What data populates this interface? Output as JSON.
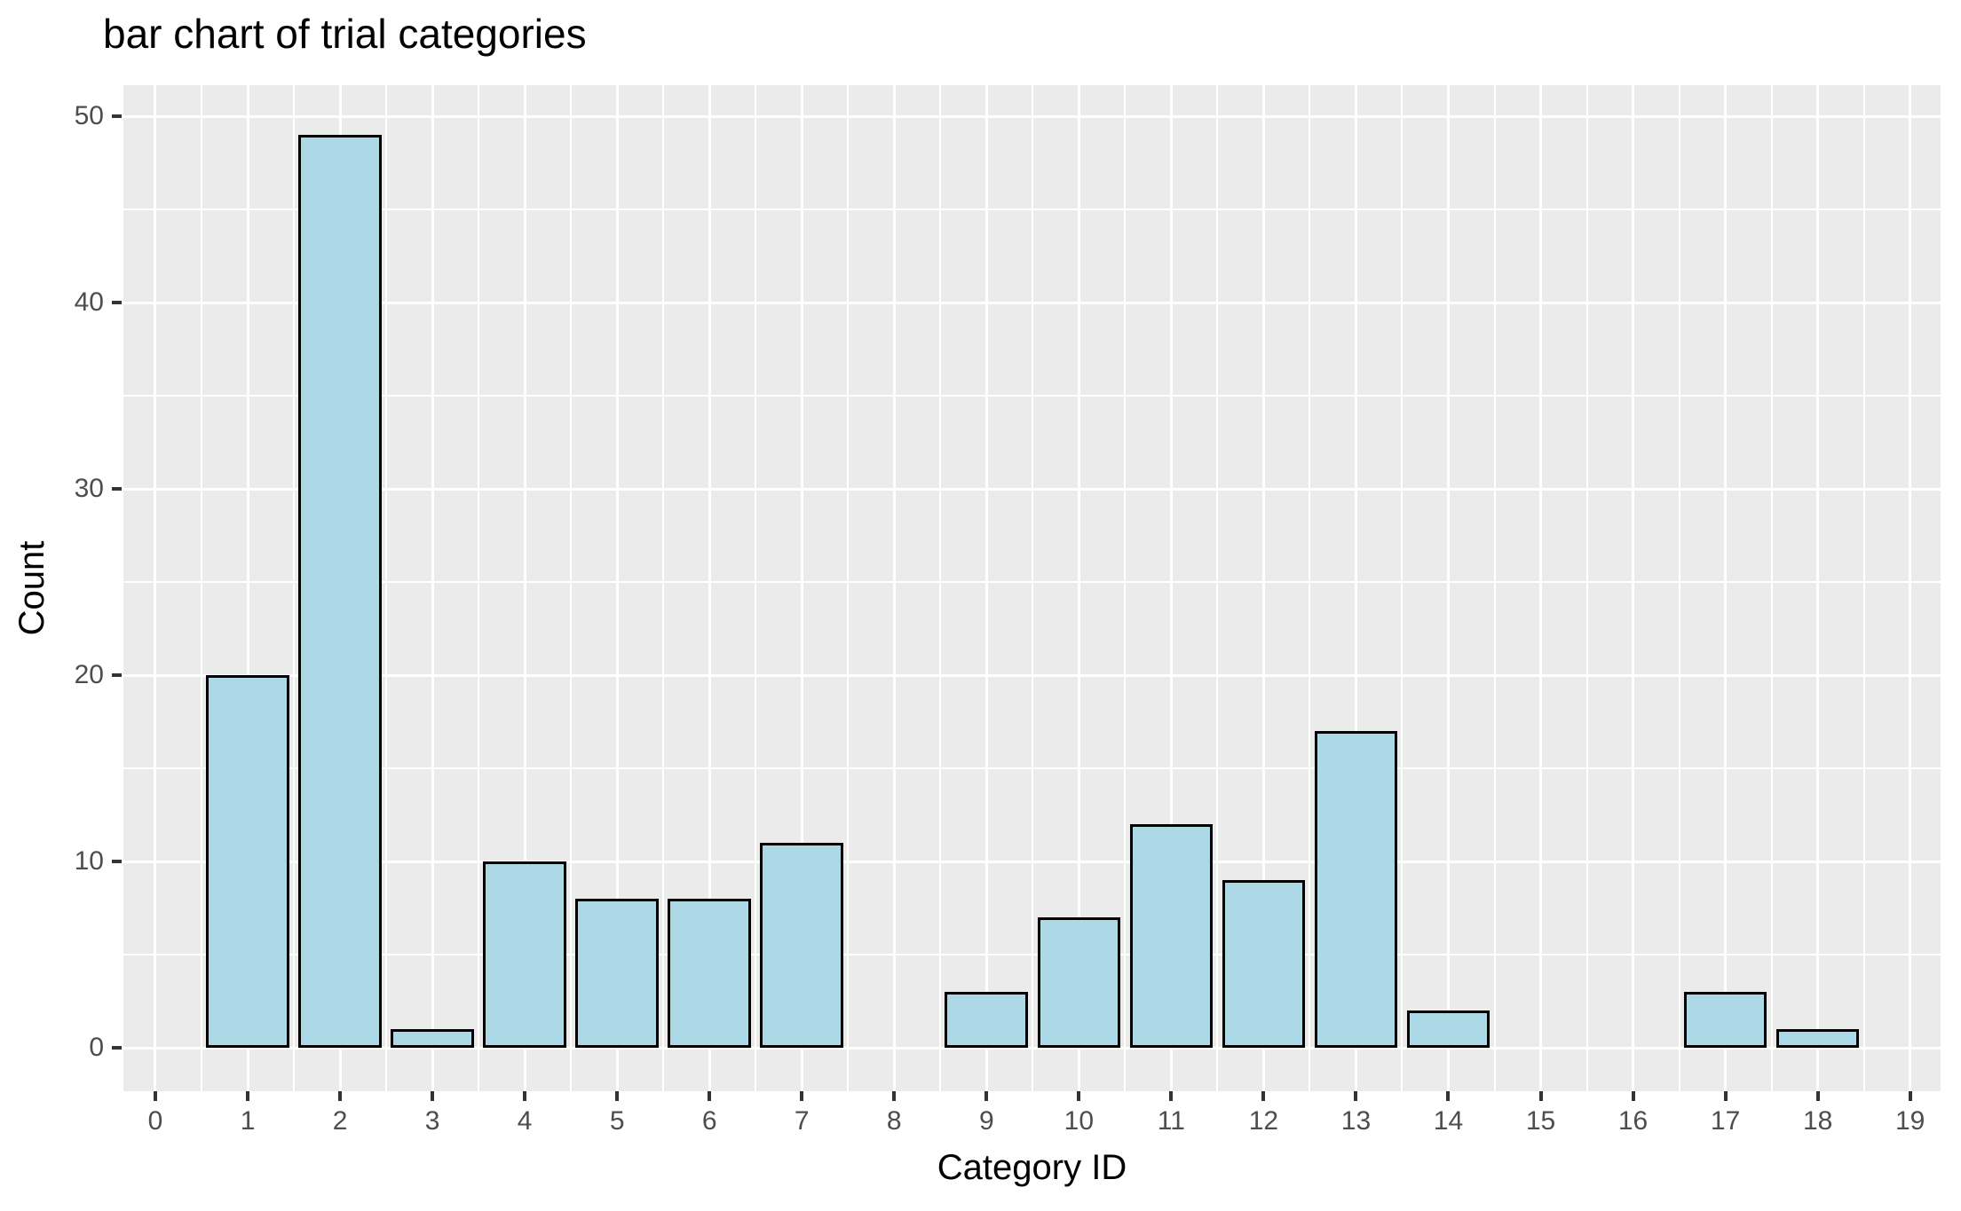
{
  "chart_data": {
    "type": "bar",
    "title": "bar chart of trial categories",
    "xlabel": "Category ID",
    "ylabel": "Count",
    "categories": [
      0,
      1,
      2,
      3,
      4,
      5,
      6,
      7,
      8,
      9,
      10,
      11,
      12,
      13,
      14,
      15,
      16,
      17,
      18,
      19
    ],
    "values": [
      0,
      20,
      49,
      1,
      10,
      8,
      8,
      11,
      0,
      3,
      7,
      12,
      9,
      17,
      2,
      0,
      0,
      3,
      1,
      0
    ],
    "x_tick_labels": [
      "0",
      "1",
      "2",
      "3",
      "4",
      "5",
      "6",
      "7",
      "8",
      "9",
      "10",
      "11",
      "12",
      "13",
      "14",
      "15",
      "16",
      "17",
      "18",
      "19"
    ],
    "y_tick_labels": [
      "0",
      "10",
      "20",
      "30",
      "40",
      "50"
    ],
    "y_tick_values": [
      0,
      10,
      20,
      30,
      40,
      50
    ],
    "y_minor_values": [
      5,
      15,
      25,
      35,
      45
    ],
    "xlim": [
      -0.346,
      19.33
    ],
    "ylim": [
      -2.333,
      51.667
    ],
    "bar_width": 0.9,
    "grid": "white major and minor gridlines on gray panel",
    "legend": "none",
    "colors": {
      "bar_fill": "#ADD8E6",
      "bar_stroke": "#000000",
      "panel_bg": "#EBEBEB",
      "gridline": "#FFFFFF",
      "tick_label": "#4D4D4D",
      "tick_mark": "#333333",
      "text": "#000000",
      "page_bg": "#FFFFFF"
    }
  }
}
